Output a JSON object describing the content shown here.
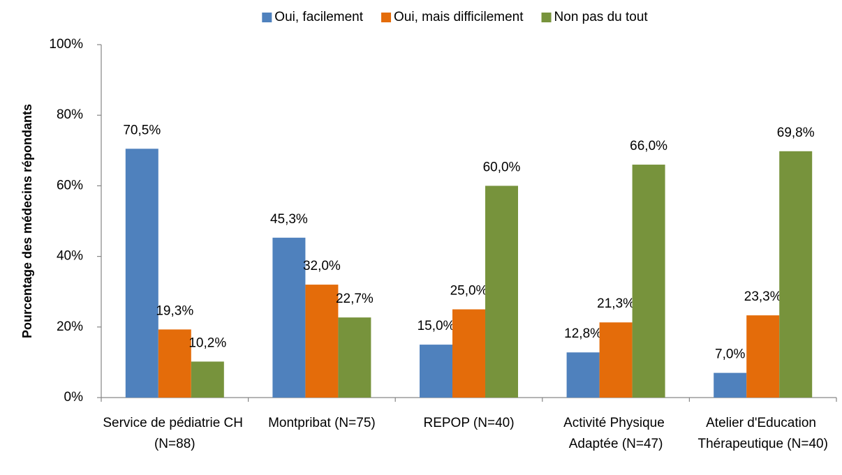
{
  "chart_data": {
    "type": "bar",
    "y_label": "Pourcentage des médecins répondants",
    "categories": [
      "Service de pédiatrie CH (N=88)",
      "Montpribat (N=75)",
      "REPOP (N=40)",
      "Activité Physique Adaptée (N=47)",
      "Atelier d'Education Thérapeutique (N=40)"
    ],
    "series": [
      {
        "name": "Oui, facilement",
        "color": "#4f81bd",
        "values": [
          70.5,
          45.3,
          15.0,
          12.8,
          7.0
        ],
        "value_labels": [
          "70,5%",
          "45,3%",
          "15,0%",
          "12,8%",
          "7,0%"
        ]
      },
      {
        "name": "Oui, mais difficilement",
        "color": "#e46c0a",
        "values": [
          19.3,
          32.0,
          25.0,
          21.3,
          23.3
        ],
        "value_labels": [
          "19,3%",
          "32,0%",
          "25,0%",
          "21,3%",
          "23,3%"
        ]
      },
      {
        "name": "Non pas du tout",
        "color": "#77933c",
        "values": [
          10.2,
          22.7,
          60.0,
          66.0,
          69.8
        ],
        "value_labels": [
          "10,2%",
          "22,7%",
          "60,0%",
          "66,0%",
          "69,8%"
        ]
      }
    ],
    "ylim": [
      0,
      100
    ],
    "yticks": [
      {
        "value": 0,
        "label": "0%"
      },
      {
        "value": 20,
        "label": "20%"
      },
      {
        "value": 40,
        "label": "40%"
      },
      {
        "value": 60,
        "label": "60%"
      },
      {
        "value": 80,
        "label": "80%"
      },
      {
        "value": 100,
        "label": "100%"
      }
    ],
    "grid": false,
    "legend": "top"
  }
}
